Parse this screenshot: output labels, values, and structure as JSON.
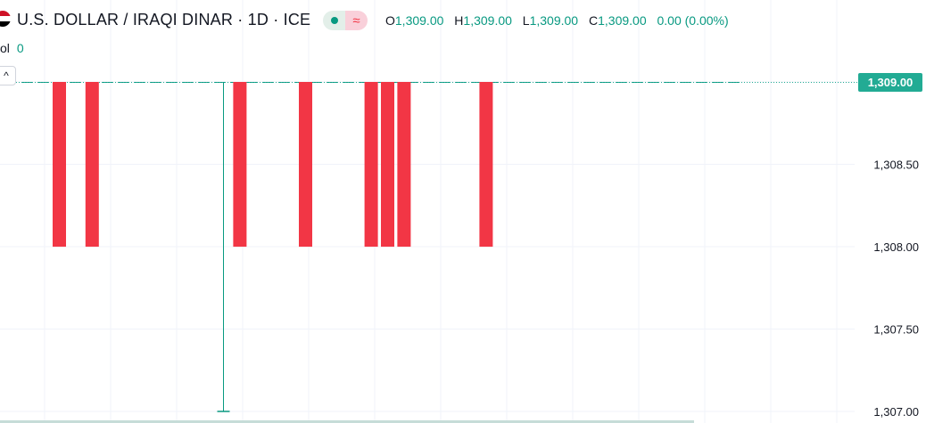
{
  "header": {
    "symbol": "U.S. DOLLAR / IRAQI DINAR · 1D · ICE",
    "ohlc": {
      "open_label": "O",
      "open": "1,309.00",
      "high_label": "H",
      "high": "1,309.00",
      "low_label": "L",
      "low": "1,309.00",
      "close_label": "C",
      "close": "1,309.00",
      "change": "0.00 (0.00%)"
    },
    "volume_label": "ol",
    "volume_value": "0",
    "collapse_glyph": "^",
    "wave_glyph": "≈"
  },
  "last_price_label": "1,309.00",
  "colors": {
    "up": "#089981",
    "down": "#f23645",
    "last_price": "#22ab94"
  },
  "chart_data": {
    "type": "bar",
    "title": "U.S. DOLLAR / IRAQI DINAR · 1D · ICE",
    "ylim": [
      1307.0,
      1309.2
    ],
    "y_ticks": [
      1307.0,
      1307.5,
      1308.0,
      1308.5,
      1309.0
    ],
    "y_tick_labels": [
      "1,307.00",
      "1,307.50",
      "1,308.00",
      "1,308.50",
      "1,309.00"
    ],
    "grid": true,
    "last_price": 1309.0,
    "candles": [
      {
        "index": 0,
        "open": 1309.0,
        "high": 1309.0,
        "low": 1308.0,
        "close": 1308.0
      },
      {
        "index": 2,
        "open": 1309.0,
        "high": 1309.0,
        "low": 1308.0,
        "close": 1308.0
      },
      {
        "index": 10,
        "open": 1309.0,
        "high": 1309.0,
        "low": 1307.0,
        "close": 1309.0
      },
      {
        "index": 11,
        "open": 1309.0,
        "high": 1309.0,
        "low": 1308.0,
        "close": 1308.0
      },
      {
        "index": 15,
        "open": 1309.0,
        "high": 1309.0,
        "low": 1308.0,
        "close": 1308.0
      },
      {
        "index": 19,
        "open": 1309.0,
        "high": 1309.0,
        "low": 1308.0,
        "close": 1308.0
      },
      {
        "index": 20,
        "open": 1309.0,
        "high": 1309.0,
        "low": 1308.0,
        "close": 1308.0
      },
      {
        "index": 21,
        "open": 1309.0,
        "high": 1309.0,
        "low": 1308.0,
        "close": 1308.0
      },
      {
        "index": 26,
        "open": 1309.0,
        "high": 1309.0,
        "low": 1308.0,
        "close": 1308.0
      }
    ],
    "flat_range": {
      "from_index": 0,
      "to_index": 41,
      "value": 1309.0
    }
  }
}
